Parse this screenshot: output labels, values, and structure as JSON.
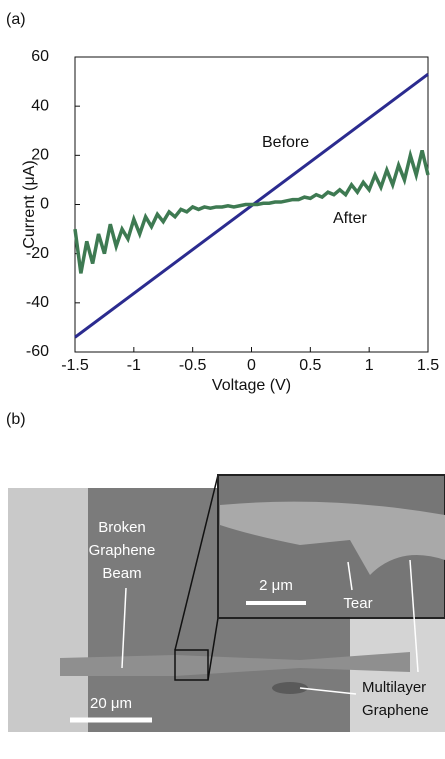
{
  "panel_labels": [
    "(a)",
    "(b)"
  ],
  "chart_data": {
    "type": "line",
    "xlabel": "Voltage (V)",
    "ylabel": "Current (μA)",
    "xlim": [
      -1.5,
      1.5
    ],
    "ylim": [
      -60,
      60
    ],
    "xticks": [
      -1.5,
      -1,
      -0.5,
      0,
      0.5,
      1,
      1.5
    ],
    "yticks": [
      -60,
      -40,
      -20,
      0,
      20,
      40,
      60
    ],
    "series": [
      {
        "name": "Before",
        "color": "#2b2b8f",
        "x": [
          -1.5,
          1.5
        ],
        "values": [
          -54,
          53
        ]
      },
      {
        "name": "After",
        "color": "#3e7a52",
        "x": [
          -1.5,
          -1.45,
          -1.4,
          -1.35,
          -1.3,
          -1.25,
          -1.2,
          -1.15,
          -1.1,
          -1.05,
          -1,
          -0.95,
          -0.9,
          -0.85,
          -0.8,
          -0.75,
          -0.7,
          -0.65,
          -0.6,
          -0.55,
          -0.5,
          -0.45,
          -0.4,
          -0.35,
          -0.3,
          -0.25,
          -0.2,
          -0.15,
          -0.1,
          -0.05,
          0,
          0.05,
          0.1,
          0.15,
          0.2,
          0.25,
          0.3,
          0.35,
          0.4,
          0.45,
          0.5,
          0.55,
          0.6,
          0.65,
          0.7,
          0.75,
          0.8,
          0.85,
          0.9,
          0.95,
          1,
          1.05,
          1.1,
          1.15,
          1.2,
          1.25,
          1.3,
          1.35,
          1.4,
          1.45,
          1.5
        ],
        "values": [
          -10,
          -28,
          -15,
          -24,
          -12,
          -20,
          -8,
          -17,
          -10,
          -14,
          -6,
          -12,
          -5,
          -9,
          -4,
          -7,
          -3,
          -5,
          -2,
          -3,
          -1,
          -2,
          -1,
          -1.5,
          -1,
          -1,
          -0.5,
          -1,
          -0.5,
          0,
          0,
          0,
          0.5,
          0.5,
          1,
          1,
          1.5,
          2,
          2,
          3,
          2.5,
          4,
          3,
          5,
          4,
          6,
          4,
          8,
          5,
          9,
          6,
          12,
          7,
          14,
          8,
          16,
          10,
          20,
          12,
          22,
          12
        ]
      }
    ]
  },
  "image": {
    "beam_label": [
      "Broken",
      "Graphene",
      "Beam"
    ],
    "inset_scale": "2 μm",
    "tear": "Tear",
    "multilayer_label": [
      "Multilayer",
      "Graphene"
    ],
    "scale": "20 μm"
  }
}
